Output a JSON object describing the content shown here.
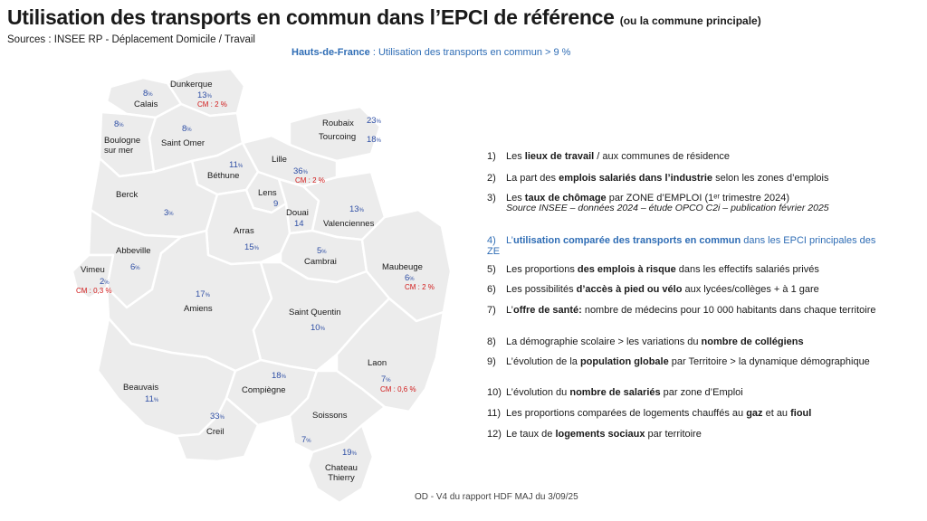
{
  "header": {
    "title": "Utilisation des transports en commun dans l’EPCI de référence",
    "title_sub": "(ou la commune principale)",
    "sources": "Sources : INSEE RP - Déplacement Domicile / Travail",
    "region_name": "Hauts-de-France",
    "region_text": " : Utilisation des transports en commun > 9 %"
  },
  "map": {
    "fill_color": "#ececec",
    "border_color": "#ffffff",
    "value_color": "#2f4fa5",
    "cm_color": "#d11a1a",
    "zones": [
      {
        "name": "Dunkerque",
        "value": "13",
        "cm": "CM : 2 %"
      },
      {
        "name": "Calais",
        "value": "8",
        "cm": ""
      },
      {
        "name": "Boulogne sur mer",
        "value": "8",
        "cm": ""
      },
      {
        "name": "Saint Omer",
        "value": "8",
        "cm": ""
      },
      {
        "name": "Roubaix Tourcoing",
        "value": "23",
        "value2": "18",
        "cm": ""
      },
      {
        "name": "Lille",
        "value": "36",
        "cm": "CM : 2 %"
      },
      {
        "name": "Béthune",
        "value": "11",
        "cm": ""
      },
      {
        "name": "Lens",
        "value": "9",
        "cm": ""
      },
      {
        "name": "Douai",
        "value": "14",
        "cm": ""
      },
      {
        "name": "Valenciennes",
        "value": "13",
        "cm": ""
      },
      {
        "name": "Berck",
        "value": "3",
        "cm": ""
      },
      {
        "name": "Arras",
        "value": "15",
        "cm": ""
      },
      {
        "name": "Cambrai",
        "value": "5",
        "cm": ""
      },
      {
        "name": "Abbeville",
        "value": "6",
        "cm": ""
      },
      {
        "name": "Vimeu",
        "value": "2",
        "cm": "CM : 0,3 %"
      },
      {
        "name": "Maubeuge",
        "value": "6",
        "cm": "CM : 2 %"
      },
      {
        "name": "Amiens",
        "value": "17",
        "cm": ""
      },
      {
        "name": "Saint Quentin",
        "value": "10",
        "cm": ""
      },
      {
        "name": "Laon",
        "value": "7",
        "cm": "CM : 0,6 %"
      },
      {
        "name": "Beauvais",
        "value": "11",
        "cm": ""
      },
      {
        "name": "Compiègne",
        "value": "18",
        "cm": ""
      },
      {
        "name": "Creil",
        "value": "33",
        "cm": ""
      },
      {
        "name": "Soissons",
        "value": "7",
        "cm": ""
      },
      {
        "name": "Chateau Thierry",
        "value": "19",
        "cm": ""
      }
    ]
  },
  "list": {
    "items": [
      {
        "num": "1)",
        "pre": "Les ",
        "b1": "lieux de travail",
        "post": " / aux communes de résidence",
        "note": "",
        "active": false
      },
      {
        "num": "2)",
        "pre": "La part des ",
        "b1": "emplois salariés dans l’industrie",
        "post": " selon les zones d’emplois",
        "note": "",
        "active": false
      },
      {
        "num": "3)",
        "pre": "Les ",
        "b1": "taux de chômage",
        "post": " par ZONE d’EMPLOI (1ᵉʳ trimestre 2024)",
        "note": "Source INSEE – données 2024 – étude OPCO C2i – publication février 2025",
        "active": false
      },
      {
        "num": "4)",
        "pre": "L’",
        "b1": "utilisation comparée des transports en commun",
        "post": " dans les EPCI principales des ZE",
        "note": "",
        "active": true
      },
      {
        "num": "5)",
        "pre": "Les proportions ",
        "b1": "des emplois à risque",
        "post": " dans les effectifs salariés privés",
        "note": "",
        "active": false
      },
      {
        "num": "6)",
        "pre": "Les possibilités ",
        "b1": "d’accès à pied ou vélo",
        "post": " aux lycées/collèges + à 1 gare",
        "note": "",
        "active": false
      },
      {
        "num": "7)",
        "pre": "L’",
        "b1": "offre de santé:",
        "post": " nombre de médecins  pour 10 000 habitants dans chaque territoire",
        "note": "",
        "active": false
      },
      {
        "num": "8)",
        "pre": "La démographie scolaire > les variations du ",
        "b1": "nombre de collégiens",
        "post": "",
        "note": "",
        "active": false
      },
      {
        "num": "9)",
        "pre": "L’évolution de la ",
        "b1": "population globale",
        "post": " par Territoire > la dynamique démographique",
        "note": "",
        "active": false
      },
      {
        "num": "10)",
        "pre": "L’évolution du ",
        "b1": "nombre de salariés",
        "post": " par zone d’Emploi",
        "note": "",
        "active": false
      },
      {
        "num": "11)",
        "pre": "Les proportions comparées de logements chauffés au ",
        "b1": "gaz",
        "mid": " et au ",
        "b2": "fioul",
        "post": "",
        "note": "",
        "active": false
      },
      {
        "num": "12)",
        "pre": "Le taux de ",
        "b1": "logements sociaux",
        "post": " par territoire",
        "note": "",
        "active": false
      }
    ]
  },
  "footer": "OD - V4 du rapport HDF MAJ du 3/09/25"
}
